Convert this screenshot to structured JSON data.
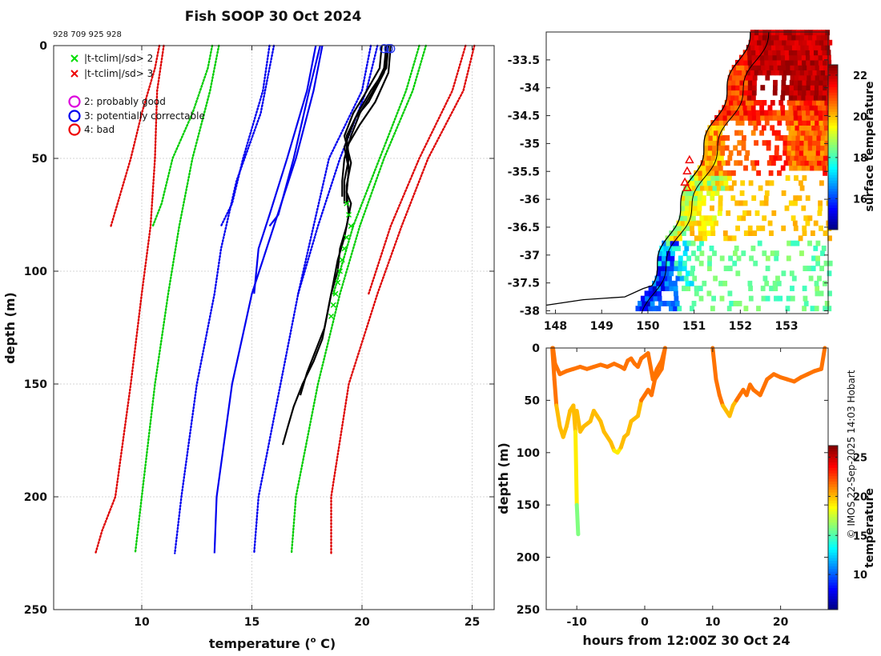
{
  "title": "Fish SOOP 30 Oct 2024",
  "ids_label": "928 709 925 928",
  "credit": "© IMOS 22-Sep-2025 14:03 Hobart",
  "chart_data": [
    {
      "name": "profile",
      "type": "line",
      "xlabel": "temperature (",
      "xlabel_sup": "o",
      "xlabel_end": " C)",
      "ylabel": "depth (m)",
      "xlim": [
        6,
        26
      ],
      "ylim": [
        250,
        0
      ],
      "xticks": [
        10,
        15,
        20,
        25
      ],
      "yticks": [
        0,
        50,
        100,
        150,
        200,
        250
      ],
      "grid": true,
      "legend": {
        "position": "top-left",
        "items": [
          {
            "marker": "x",
            "color": "#00dd00",
            "label": "|t-tclim|/sd> 2"
          },
          {
            "marker": "x",
            "color": "#ee0000",
            "label": "|t-tclim|/sd> 3"
          },
          {
            "marker": "o",
            "color": "#dd00dd",
            "label": "2: probably good"
          },
          {
            "marker": "o",
            "color": "#0000ee",
            "label": "3: potentially correctable"
          },
          {
            "marker": "o",
            "color": "#ee0000",
            "label": "4: bad"
          }
        ]
      },
      "climatology_series": [
        {
          "name": "clim-sd3-cold-1",
          "color": "#dd0000",
          "style": "dotted",
          "depth": [
            0,
            10,
            30,
            50,
            70,
            80
          ],
          "temp": [
            10.8,
            10.6,
            10.0,
            9.5,
            8.9,
            8.6
          ]
        },
        {
          "name": "clim-sd3-cold-2",
          "color": "#dd0000",
          "style": "dotted",
          "depth": [
            0,
            20,
            50,
            80,
            110,
            150,
            200,
            215,
            225
          ],
          "temp": [
            11.0,
            10.7,
            10.6,
            10.4,
            10.0,
            9.5,
            8.8,
            8.2,
            7.9
          ]
        },
        {
          "name": "clim-sd2-cold-1",
          "color": "#00cc00",
          "style": "dotted",
          "depth": [
            0,
            10,
            30,
            50,
            70,
            80
          ],
          "temp": [
            13.2,
            13.0,
            12.3,
            11.4,
            10.9,
            10.5
          ]
        },
        {
          "name": "clim-sd2-cold-2",
          "color": "#00cc00",
          "style": "dotted",
          "depth": [
            0,
            20,
            50,
            80,
            110,
            150,
            200,
            225
          ],
          "temp": [
            13.5,
            13.1,
            12.3,
            11.7,
            11.2,
            10.6,
            10.0,
            9.7
          ]
        },
        {
          "name": "clim-mean-cold-1",
          "color": "#0000ee",
          "style": "dotted",
          "depth": [
            0,
            20,
            50,
            70,
            80
          ],
          "temp": [
            15.8,
            15.5,
            14.6,
            14.1,
            13.6
          ]
        },
        {
          "name": "clim-mean-cold-2",
          "color": "#0000ee",
          "style": "dotted",
          "depth": [
            0,
            30,
            60,
            90,
            110,
            150,
            200,
            225
          ],
          "temp": [
            16.0,
            15.4,
            14.3,
            13.6,
            13.3,
            12.5,
            11.8,
            11.5
          ]
        },
        {
          "name": "clim-mean-1",
          "color": "#0000ee",
          "style": "solid",
          "depth": [
            0,
            20,
            50,
            75,
            90,
            110
          ],
          "temp": [
            17.9,
            17.5,
            16.6,
            15.8,
            15.3,
            15.1
          ]
        },
        {
          "name": "clim-mean-2",
          "color": "#0000ee",
          "style": "solid",
          "depth": [
            0,
            20,
            50,
            75,
            80
          ],
          "temp": [
            18.1,
            17.6,
            16.9,
            16.2,
            15.8
          ]
        },
        {
          "name": "clim-mean-3",
          "color": "#0000ee",
          "style": "solid",
          "depth": [
            0,
            20,
            50,
            80,
            110,
            150,
            200,
            225
          ],
          "temp": [
            18.2,
            17.8,
            17.0,
            16.0,
            15.0,
            14.1,
            13.4,
            13.3
          ]
        },
        {
          "name": "clim-mean-warm-1",
          "color": "#0000ee",
          "style": "dotted",
          "depth": [
            0,
            20,
            50,
            80,
            110
          ],
          "temp": [
            20.4,
            20.0,
            18.5,
            17.8,
            17.1
          ]
        },
        {
          "name": "clim-mean-warm-2",
          "color": "#0000ee",
          "style": "dotted",
          "depth": [
            0,
            20,
            50,
            80,
            110,
            150,
            200,
            225
          ],
          "temp": [
            20.7,
            20.2,
            19.0,
            18.0,
            17.1,
            16.3,
            15.3,
            15.1
          ]
        },
        {
          "name": "clim-sd2-warm-1",
          "color": "#00cc00",
          "style": "dotted",
          "depth": [
            0,
            20,
            50,
            80,
            110
          ],
          "temp": [
            22.6,
            22.0,
            20.8,
            19.6,
            18.7
          ]
        },
        {
          "name": "clim-sd2-warm-2",
          "color": "#00cc00",
          "style": "dotted",
          "depth": [
            0,
            20,
            50,
            80,
            110,
            150,
            200,
            225
          ],
          "temp": [
            22.9,
            22.3,
            21.0,
            19.9,
            19.0,
            18.0,
            17.0,
            16.8
          ]
        },
        {
          "name": "clim-sd3-warm-1",
          "color": "#dd0000",
          "style": "dotted",
          "depth": [
            0,
            20,
            50,
            80,
            110
          ],
          "temp": [
            24.7,
            24.1,
            22.6,
            21.3,
            20.3
          ]
        },
        {
          "name": "clim-sd3-warm-2",
          "color": "#dd0000",
          "style": "dotted",
          "depth": [
            0,
            20,
            50,
            80,
            110,
            150,
            200,
            225
          ],
          "temp": [
            25.1,
            24.6,
            23.0,
            21.8,
            20.7,
            19.4,
            18.6,
            18.6
          ]
        }
      ],
      "profiles": [
        {
          "name": "profile-1",
          "depth": [
            0,
            10,
            20,
            30,
            40,
            50,
            60,
            67
          ],
          "temp": [
            21.1,
            21.0,
            20.5,
            19.9,
            19.5,
            19.2,
            19.1,
            19.1
          ]
        },
        {
          "name": "profile-2",
          "depth": [
            0,
            10,
            20,
            30,
            40,
            50,
            60,
            70
          ],
          "temp": [
            21.2,
            21.1,
            20.4,
            19.8,
            19.3,
            19.4,
            19.2,
            19.2
          ]
        },
        {
          "name": "profile-3",
          "depth": [
            0,
            10,
            22,
            30,
            40,
            52,
            62,
            70
          ],
          "temp": [
            20.9,
            20.8,
            20.1,
            19.6,
            19.2,
            19.5,
            19.3,
            19.3
          ]
        },
        {
          "name": "profile-4",
          "depth": [
            0,
            12,
            25,
            32,
            45,
            55,
            65,
            70,
            80,
            90,
            100,
            110,
            120,
            130,
            140,
            150,
            160,
            170,
            177
          ],
          "temp": [
            21.2,
            21.0,
            20.3,
            19.7,
            19.2,
            19.4,
            19.3,
            19.5,
            19.3,
            19.0,
            18.9,
            18.6,
            18.4,
            18.2,
            17.8,
            17.3,
            16.9,
            16.6,
            16.4
          ]
        },
        {
          "name": "profile-5",
          "depth": [
            0,
            12,
            25,
            35,
            45,
            55,
            65,
            75,
            85,
            95,
            105,
            115,
            125,
            135,
            145,
            155
          ],
          "temp": [
            21.3,
            21.2,
            20.6,
            19.9,
            19.3,
            19.4,
            19.3,
            19.4,
            19.2,
            18.9,
            18.7,
            18.5,
            18.3,
            17.9,
            17.5,
            17.2
          ]
        }
      ],
      "qc_markers": {
        "circles_blue": [
          [
            21.0,
            1
          ],
          [
            21.2,
            1
          ],
          [
            21.3,
            1
          ]
        ],
        "x_green": [
          [
            19.3,
            70
          ],
          [
            19.4,
            75
          ],
          [
            19.5,
            80
          ],
          [
            19.3,
            85
          ],
          [
            19.2,
            90
          ],
          [
            19.1,
            95
          ],
          [
            19.0,
            100
          ],
          [
            18.9,
            105
          ],
          [
            18.8,
            110
          ],
          [
            18.7,
            115
          ],
          [
            18.6,
            120
          ]
        ]
      }
    },
    {
      "name": "sst-map",
      "type": "heatmap",
      "colorbar_label": "surface temperature",
      "colorbar_ticks": [
        16,
        18,
        20,
        22
      ],
      "colorbar_range": [
        14.5,
        22.5
      ],
      "xticks": [
        148,
        149,
        150,
        151,
        152,
        153
      ],
      "yticks": [
        -33.5,
        -34,
        -34.5,
        -35,
        -35.5,
        -36,
        -36.5,
        -37,
        -37.5,
        -38
      ],
      "xlim": [
        147.8,
        153.9
      ],
      "ylim": [
        -38.05,
        -33.0
      ],
      "track_markers": [
        [
          150.9,
          -35.3
        ],
        [
          150.85,
          -35.5
        ],
        [
          150.8,
          -35.7
        ],
        [
          150.85,
          -35.8
        ]
      ]
    },
    {
      "name": "transect",
      "type": "heatmap",
      "xlabel": "hours from 12:00Z 30 Oct 24",
      "ylabel": "depth (m)",
      "xticks": [
        -10,
        0,
        10,
        20
      ],
      "yticks": [
        0,
        50,
        100,
        150,
        200,
        250
      ],
      "xlim": [
        -14.5,
        27
      ],
      "ylim": [
        250,
        0
      ],
      "colorbar_label": "temperature",
      "colorbar_ticks": [
        10,
        15,
        20,
        25
      ],
      "colorbar_range": [
        5.5,
        26.5
      ],
      "segments": [
        {
          "hours": [
            -13.5,
            -13.2,
            -12.5,
            -11.5,
            -10.5,
            -9.5,
            -8.5,
            -7.5,
            -6.5,
            -5.5,
            -4.5,
            -3.5,
            -3,
            -2.5,
            -2,
            -1.5,
            -1,
            -0.5,
            0.5,
            1.2,
            1.8,
            2.5,
            3
          ],
          "depth": [
            0,
            15,
            25,
            22,
            20,
            18,
            20,
            18,
            16,
            18,
            15,
            18,
            20,
            12,
            10,
            15,
            18,
            10,
            5,
            30,
            20,
            12,
            0
          ]
        },
        {
          "hours": [
            -13.6,
            -13.3,
            -13,
            -12.5,
            -12,
            -11.5,
            -11,
            -10.5,
            -10.2,
            -10,
            -9.8
          ],
          "depth": [
            0,
            30,
            55,
            75,
            85,
            75,
            60,
            55,
            80,
            150,
            178
          ]
        },
        {
          "hours": [
            -10,
            -9.5,
            -9,
            -8,
            -7.5,
            -7,
            -6.5,
            -6,
            -5,
            -4.5,
            -4,
            -3.5,
            -3,
            -2.5,
            -2,
            -1,
            -0.5,
            0,
            0.5,
            1,
            1.5,
            2,
            2.5,
            3
          ],
          "depth": [
            60,
            80,
            75,
            70,
            60,
            65,
            70,
            80,
            90,
            98,
            100,
            95,
            85,
            82,
            70,
            65,
            50,
            45,
            40,
            45,
            30,
            25,
            20,
            0
          ]
        },
        {
          "hours": [
            10,
            10.5,
            11,
            11.5,
            12,
            12.5,
            13,
            13.5,
            14,
            14.5,
            15,
            15.5,
            16,
            17,
            18,
            19,
            20,
            21,
            22,
            23,
            24,
            25,
            26,
            26.5
          ],
          "depth": [
            0,
            30,
            45,
            55,
            60,
            65,
            55,
            50,
            45,
            40,
            45,
            35,
            40,
            45,
            30,
            25,
            28,
            30,
            32,
            28,
            25,
            22,
            20,
            0
          ]
        }
      ]
    }
  ]
}
